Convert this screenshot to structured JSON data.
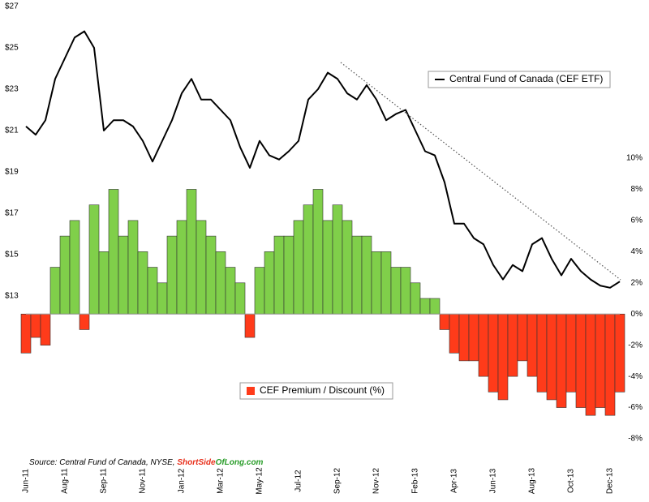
{
  "chart_data": {
    "type": "line_area",
    "categories": [
      "Jun-11",
      null,
      null,
      null,
      "Aug-11",
      null,
      null,
      null,
      "Sep-11",
      null,
      null,
      null,
      "Nov-11",
      null,
      null,
      null,
      "Jan-12",
      null,
      null,
      null,
      "Mar-12",
      null,
      null,
      null,
      "May-12",
      null,
      null,
      null,
      "Jul-12",
      null,
      null,
      null,
      "Sep-12",
      null,
      null,
      null,
      "Nov-12",
      null,
      null,
      null,
      "Feb-13",
      null,
      null,
      null,
      "Apr-13",
      null,
      null,
      null,
      "Jun-13",
      null,
      null,
      null,
      "Aug-13",
      null,
      null,
      null,
      "Oct-13",
      null,
      null,
      null,
      "Dec-13",
      null
    ],
    "series": [
      {
        "name": "Central Fund of Canada (CEF ETF)",
        "color": "#000000",
        "axis": "y",
        "values": [
          21.2,
          20.8,
          21.5,
          23.5,
          24.5,
          25.5,
          25.8,
          25.0,
          21.0,
          21.5,
          21.5,
          21.2,
          20.5,
          19.5,
          20.5,
          21.5,
          22.8,
          23.5,
          22.5,
          22.5,
          22.0,
          21.5,
          20.2,
          19.2,
          20.5,
          19.8,
          19.6,
          20.0,
          20.5,
          22.5,
          23.0,
          23.8,
          23.5,
          22.8,
          22.5,
          23.2,
          22.5,
          21.5,
          21.8,
          22.0,
          21.0,
          20.0,
          19.8,
          18.5,
          16.5,
          16.5,
          15.8,
          15.5,
          14.5,
          13.8,
          14.5,
          14.2,
          15.5,
          15.8,
          14.8,
          14.0,
          14.8,
          14.2,
          13.8,
          13.5,
          13.4,
          13.7
        ]
      },
      {
        "name": "CEF Premium / Discount (%)",
        "color": "#ff3b1a",
        "color_positive": "#80cf4a",
        "color_negative": "#ff3b1a",
        "axis": "y2",
        "values": [
          -2.5,
          -1.5,
          -2,
          3,
          5,
          6,
          -1,
          7,
          4,
          8,
          5,
          6,
          4,
          3,
          2,
          5,
          6,
          8,
          6,
          5,
          4,
          3,
          2,
          -1.5,
          3,
          4,
          5,
          5,
          6,
          7,
          8,
          6,
          7,
          6,
          5,
          5,
          4,
          4,
          3,
          3,
          2,
          1,
          1,
          -1,
          -2.5,
          -3,
          -3,
          -4,
          -5,
          -5.5,
          -4,
          -3,
          -4,
          -5,
          -5.5,
          -6,
          -5,
          -6,
          -6.5,
          -6,
          -6.5,
          -5
        ]
      }
    ],
    "ylim": [
      13,
      27
    ],
    "yticks": [
      {
        "value": 13,
        "label": "$13"
      },
      {
        "value": 15,
        "label": "$15"
      },
      {
        "value": 17,
        "label": "$17"
      },
      {
        "value": 19,
        "label": "$19"
      },
      {
        "value": 21,
        "label": "$21"
      },
      {
        "value": 23,
        "label": "$23"
      },
      {
        "value": 25,
        "label": "$25"
      },
      {
        "value": 27,
        "label": "$27"
      }
    ],
    "y2lim": [
      -8,
      10
    ],
    "y2ticks": [
      {
        "value": -8,
        "label": "-8%"
      },
      {
        "value": -6,
        "label": "-6%"
      },
      {
        "value": -4,
        "label": "-4%"
      },
      {
        "value": -2,
        "label": "-2%"
      },
      {
        "value": 0,
        "label": "0%"
      },
      {
        "value": 2,
        "label": "2%"
      },
      {
        "value": 4,
        "label": "4%"
      },
      {
        "value": 6,
        "label": "6%"
      },
      {
        "value": 8,
        "label": "8%"
      },
      {
        "value": 10,
        "label": "10%"
      }
    ],
    "source": "Source: Central Fund of Canada, NYSE,",
    "source_site": [
      "Short",
      "Side",
      "OfLong.com"
    ]
  }
}
